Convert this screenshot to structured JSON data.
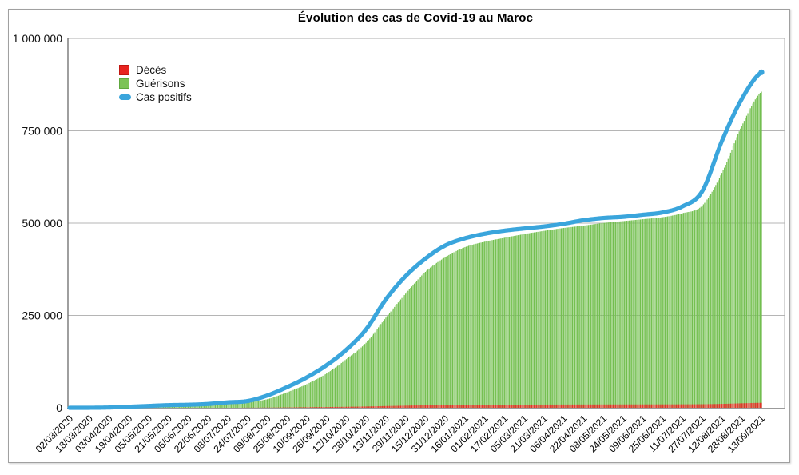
{
  "title": "Évolution des cas de Covid-19 au Maroc",
  "legend": {
    "deces": {
      "label": "Décès",
      "color": "#e8241f",
      "border": "#c01712"
    },
    "guerisons": {
      "label": "Guérisons",
      "color": "#7cc356",
      "border": "#5fa83e"
    },
    "cas_positifs": {
      "label": "Cas positifs",
      "color": "#3aa5dc",
      "border": "#3aa5dc"
    }
  },
  "colors": {
    "bar_recovered_light": "#8ed06d",
    "bar_recovered_mid": "#77c351",
    "bar_recovered_dark": "#5cae3b",
    "bar_deaths_light": "#f26152",
    "bar_deaths_mid": "#e63327",
    "bar_deaths_dark": "#cf2015",
    "line_positive": "#3aa5dc",
    "gridline": "#b5b5b5",
    "plot_border": "#adadad",
    "axis_left": "#6b6b6b",
    "axis_bottom": "#9b9b9b",
    "label_text": "#111111"
  },
  "y_axis": {
    "tick_labels": [
      "1 000 000",
      "750 000",
      "500 000",
      "250 000",
      "0"
    ],
    "min": 0,
    "max": 1000000,
    "tick_step": 250000
  },
  "chart_data": {
    "type": "bar+line",
    "title": "Évolution des cas de Covid-19 au Maroc",
    "interval_days": 16,
    "ylim": [
      0,
      1000000
    ],
    "grid": true,
    "legend_position": "top-left-inside",
    "categories": [
      "02/03/2020",
      "18/03/2020",
      "03/04/2020",
      "19/04/2020",
      "05/05/2020",
      "21/05/2020",
      "06/06/2020",
      "22/06/2020",
      "08/07/2020",
      "24/07/2020",
      "09/08/2020",
      "25/08/2020",
      "10/09/2020",
      "26/09/2020",
      "12/10/2020",
      "28/10/2020",
      "13/11/2020",
      "29/11/2020",
      "15/12/2020",
      "31/12/2020",
      "16/01/2021",
      "01/02/2021",
      "17/02/2021",
      "05/03/2021",
      "21/03/2021",
      "06/04/2021",
      "22/04/2021",
      "08/05/2021",
      "24/05/2021",
      "09/06/2021",
      "25/06/2021",
      "11/07/2021",
      "27/07/2021",
      "12/08/2021",
      "28/08/2021",
      "13/09/2021"
    ],
    "series": [
      {
        "name": "Décès",
        "type": "bar",
        "color": "#e63327",
        "values": [
          0,
          2,
          48,
          141,
          179,
          197,
          208,
          214,
          242,
          285,
          498,
          920,
          1530,
          2041,
          2685,
          3572,
          4779,
          5846,
          6711,
          7388,
          7942,
          8287,
          8566,
          8678,
          8763,
          8865,
          8975,
          9073,
          9137,
          9192,
          9265,
          9405,
          9691,
          10621,
          12262,
          13593
        ]
      },
      {
        "name": "Guérisons",
        "type": "bar",
        "color": "#77c351",
        "values": [
          0,
          2,
          57,
          327,
          1838,
          4573,
          7410,
          8366,
          10393,
          15156,
          23259,
          41810,
          64110,
          92843,
          131583,
          176127,
          244062,
          308972,
          368017,
          407504,
          434925,
          449614,
          460265,
          470425,
          479063,
          486926,
          493234,
          500462,
          505446,
          510636,
          516091,
          526861,
          547424,
          636061,
          762961,
          856035
        ]
      },
      {
        "name": "Cas positifs",
        "type": "line",
        "color": "#3aa5dc",
        "values": [
          2,
          54,
          791,
          2855,
          5053,
          7211,
          8224,
          10344,
          14771,
          18264,
          33237,
          55864,
          82197,
          115241,
          156946,
          212038,
          293177,
          356336,
          403619,
          439193,
          458865,
          471157,
          479579,
          485567,
          491003,
          498329,
          507863,
          513922,
          517023,
          522765,
          528956,
          545277,
          586023,
          722143,
          835527,
          908391
        ]
      }
    ]
  }
}
